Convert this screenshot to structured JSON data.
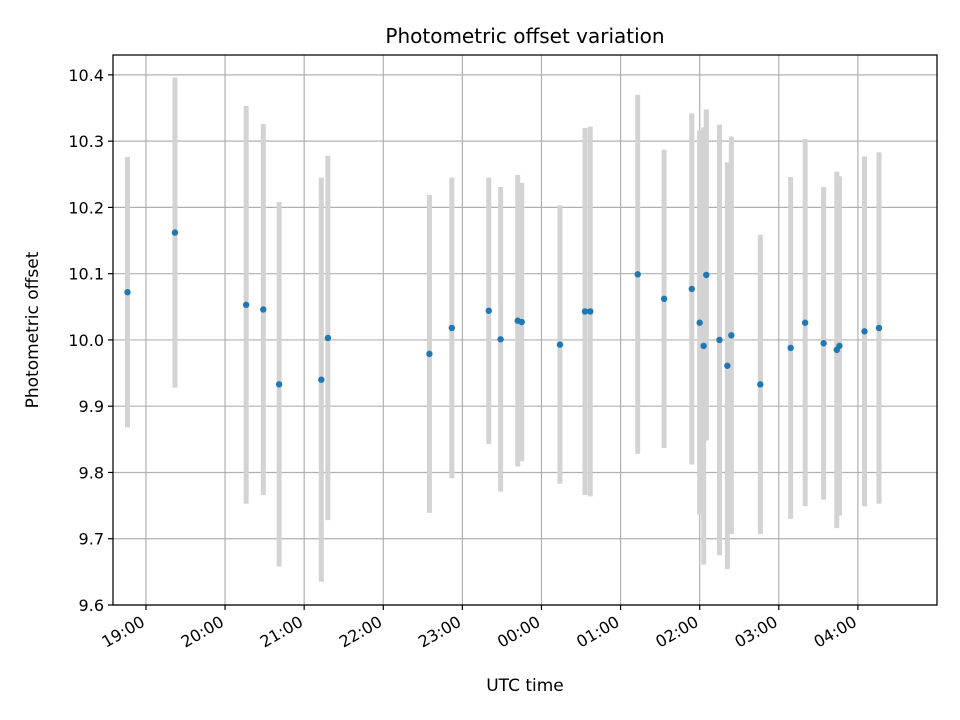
{
  "chart_data": {
    "type": "scatter",
    "title": "Photometric offset variation",
    "xlabel": "UTC time",
    "ylabel": "Photometric offset",
    "x_unit": "UTC clock time (HH:MM), spanning midnight",
    "xlim": [
      "18:35",
      "05:00"
    ],
    "ylim": [
      9.6,
      10.43
    ],
    "x_ticks": [
      "19:00",
      "20:00",
      "21:00",
      "22:00",
      "23:00",
      "00:00",
      "01:00",
      "02:00",
      "03:00",
      "04:00"
    ],
    "y_ticks": [
      "9.6",
      "9.7",
      "9.8",
      "9.9",
      "10.0",
      "10.1",
      "10.2",
      "10.3",
      "10.4"
    ],
    "grid": true,
    "colors": {
      "marker": "#1f77b4",
      "errorbar": "#d3d3d3",
      "grid": "#b0b0b0"
    },
    "series": [
      {
        "points": [
          {
            "x": "18:46",
            "y": 10.072,
            "lo": 9.868,
            "hi": 10.276
          },
          {
            "x": "19:22",
            "y": 10.162,
            "lo": 9.928,
            "hi": 10.396
          },
          {
            "x": "20:16",
            "y": 10.053,
            "lo": 9.753,
            "hi": 10.353
          },
          {
            "x": "20:29",
            "y": 10.046,
            "lo": 9.766,
            "hi": 10.326
          },
          {
            "x": "20:41",
            "y": 9.933,
            "lo": 9.658,
            "hi": 10.208
          },
          {
            "x": "21:13",
            "y": 9.94,
            "lo": 9.635,
            "hi": 10.245
          },
          {
            "x": "21:18",
            "y": 10.003,
            "lo": 9.728,
            "hi": 10.278
          },
          {
            "x": "22:35",
            "y": 9.979,
            "lo": 9.739,
            "hi": 10.219
          },
          {
            "x": "22:52",
            "y": 10.018,
            "lo": 9.791,
            "hi": 10.245
          },
          {
            "x": "23:20",
            "y": 10.044,
            "lo": 9.843,
            "hi": 10.245
          },
          {
            "x": "23:29",
            "y": 10.001,
            "lo": 9.771,
            "hi": 10.231
          },
          {
            "x": "23:42",
            "y": 10.029,
            "lo": 9.809,
            "hi": 10.249
          },
          {
            "x": "23:45",
            "y": 10.027,
            "lo": 9.817,
            "hi": 10.237
          },
          {
            "x": "00:14",
            "y": 9.993,
            "lo": 9.783,
            "hi": 10.203
          },
          {
            "x": "00:33",
            "y": 10.043,
            "lo": 9.766,
            "hi": 10.32
          },
          {
            "x": "00:37",
            "y": 10.043,
            "lo": 9.764,
            "hi": 10.322
          },
          {
            "x": "01:13",
            "y": 10.099,
            "lo": 9.828,
            "hi": 10.37
          },
          {
            "x": "01:33",
            "y": 10.062,
            "lo": 9.837,
            "hi": 10.287
          },
          {
            "x": "01:54",
            "y": 10.077,
            "lo": 9.812,
            "hi": 10.342
          },
          {
            "x": "02:00",
            "y": 10.026,
            "lo": 9.736,
            "hi": 10.316
          },
          {
            "x": "02:03",
            "y": 9.991,
            "lo": 9.661,
            "hi": 10.321
          },
          {
            "x": "02:05",
            "y": 10.098,
            "lo": 9.848,
            "hi": 10.348
          },
          {
            "x": "02:15",
            "y": 10.0,
            "lo": 9.675,
            "hi": 10.325
          },
          {
            "x": "02:21",
            "y": 9.961,
            "lo": 9.654,
            "hi": 10.268
          },
          {
            "x": "02:24",
            "y": 10.007,
            "lo": 9.707,
            "hi": 10.307
          },
          {
            "x": "02:46",
            "y": 9.933,
            "lo": 9.707,
            "hi": 10.159
          },
          {
            "x": "03:09",
            "y": 9.988,
            "lo": 9.73,
            "hi": 10.246
          },
          {
            "x": "03:20",
            "y": 10.026,
            "lo": 9.749,
            "hi": 10.303
          },
          {
            "x": "03:34",
            "y": 9.995,
            "lo": 9.759,
            "hi": 10.231
          },
          {
            "x": "03:44",
            "y": 9.985,
            "lo": 9.716,
            "hi": 10.254
          },
          {
            "x": "03:46",
            "y": 9.991,
            "lo": 9.735,
            "hi": 10.247
          },
          {
            "x": "04:05",
            "y": 10.013,
            "lo": 9.749,
            "hi": 10.277
          },
          {
            "x": "04:16",
            "y": 10.018,
            "lo": 9.753,
            "hi": 10.283
          }
        ]
      }
    ]
  }
}
